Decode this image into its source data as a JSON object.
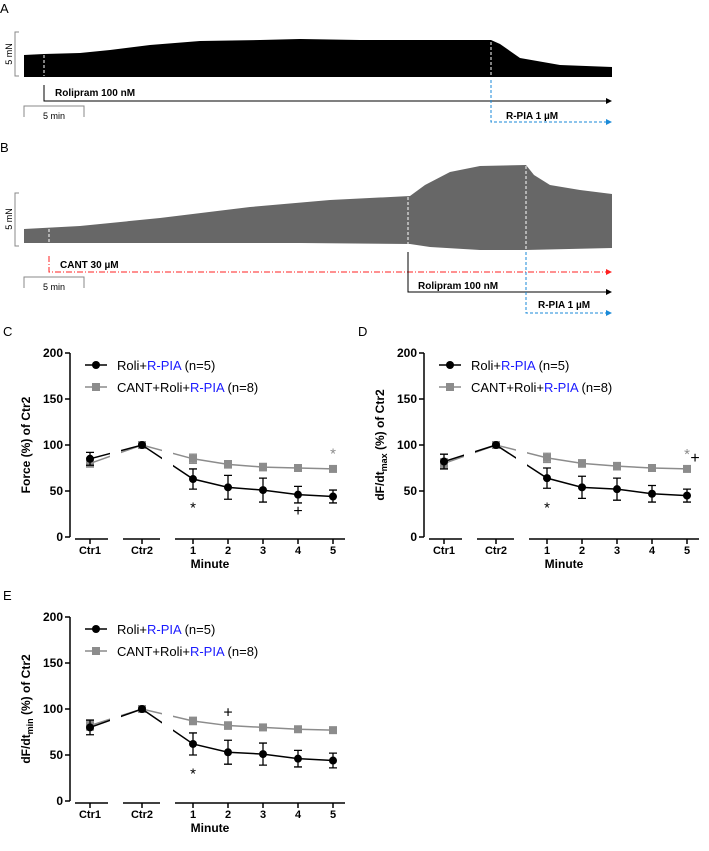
{
  "panels": {
    "a": "A",
    "b": "B",
    "c": "C",
    "d": "D",
    "e": "E"
  },
  "traces": {
    "scale_force": "5 mN",
    "scale_time": "5 min",
    "a": {
      "drug1": "Rolipram 100 nM",
      "drug2": "R-PIA 1 µM"
    },
    "b": {
      "drug0": "CANT 30 µM",
      "drug1": "Rolipram 100 nM",
      "drug2": "R-PIA 1 µM"
    }
  },
  "colors": {
    "roli": "#000000",
    "cant": "#8c8c8c",
    "rpia": "#1a1aff",
    "cant_line": "#ff2020",
    "rpia_line": "#1a8ad8",
    "trace_a": "#000000",
    "trace_b": "#676767"
  },
  "chart_data": [
    {
      "type": "line",
      "id": "c",
      "ylabel": "Force (%) of Ctr2",
      "ylabel_sub": "",
      "ylabel_end": "",
      "xlabel": "Minute",
      "ylim": [
        0,
        200
      ],
      "yticks": [
        0,
        50,
        100,
        150,
        200
      ],
      "categories": [
        "Ctr1",
        "Ctr2",
        "1",
        "2",
        "3",
        "4",
        "5"
      ],
      "legend": [
        {
          "pre": "Roli+",
          "blue": "R-PIA",
          "post": " (n=5)"
        },
        {
          "pre": "CANT+Roli+",
          "blue": "R-PIA",
          "post": " (n=8)"
        }
      ],
      "series": [
        {
          "name": "Roli+R-PIA (n=5)",
          "values": [
            85,
            100,
            63,
            54,
            51,
            46,
            44
          ],
          "errors": [
            7,
            0,
            11,
            13,
            13,
            9,
            7
          ]
        },
        {
          "name": "CANT+Roli+R-PIA (n=8)",
          "values": [
            80,
            100,
            85,
            79,
            76,
            75,
            74
          ],
          "errors": [
            4,
            0,
            5,
            4,
            4,
            3,
            3
          ]
        }
      ],
      "annotations": [
        {
          "text": "*",
          "cat": 2,
          "y": 32,
          "series": 0
        },
        {
          "text": "+",
          "cat": 5,
          "y": 28,
          "series": 0
        },
        {
          "text": "*",
          "cat": 6,
          "y": 91,
          "series": 1
        }
      ]
    },
    {
      "type": "line",
      "id": "d",
      "ylabel": "dF/dt",
      "ylabel_sub": "max",
      "ylabel_end": " (%) of Ctr2",
      "xlabel": "Minute",
      "ylim": [
        0,
        200
      ],
      "yticks": [
        0,
        50,
        100,
        150,
        200
      ],
      "categories": [
        "Ctr1",
        "Ctr2",
        "1",
        "2",
        "3",
        "4",
        "5"
      ],
      "legend": [
        {
          "pre": "Roli+",
          "blue": "R-PIA",
          "post": " (n=5)"
        },
        {
          "pre": "CANT+Roli+",
          "blue": "R-PIA",
          "post": " (n=8)"
        }
      ],
      "series": [
        {
          "name": "Roli+R-PIA (n=5)",
          "values": [
            82,
            100,
            64,
            54,
            52,
            47,
            45
          ],
          "errors": [
            8,
            0,
            11,
            12,
            12,
            9,
            7
          ]
        },
        {
          "name": "CANT+Roli+R-PIA (n=8)",
          "values": [
            80,
            100,
            86,
            80,
            77,
            75,
            74
          ],
          "errors": [
            5,
            0,
            5,
            4,
            4,
            3,
            3
          ]
        }
      ],
      "annotations": [
        {
          "text": "*",
          "cat": 2,
          "y": 32,
          "series": 0
        },
        {
          "text": "*",
          "cat": 6,
          "y": 90,
          "series": 1
        },
        {
          "text": "+",
          "cat": 6,
          "y": 86,
          "series": 0,
          "dx": 8
        }
      ]
    },
    {
      "type": "line",
      "id": "e",
      "ylabel": "dF/dt",
      "ylabel_sub": "min",
      "ylabel_end": " (%) of Ctr2",
      "xlabel": "Minute",
      "ylim": [
        0,
        200
      ],
      "yticks": [
        0,
        50,
        100,
        150,
        200
      ],
      "categories": [
        "Ctr1",
        "Ctr2",
        "1",
        "2",
        "3",
        "4",
        "5"
      ],
      "legend": [
        {
          "pre": "Roli+",
          "blue": "R-PIA",
          "post": " (n=5)"
        },
        {
          "pre": "CANT+Roli+",
          "blue": "R-PIA",
          "post": " (n=8)"
        }
      ],
      "series": [
        {
          "name": "Roli+R-PIA (n=5)",
          "values": [
            80,
            100,
            62,
            53,
            51,
            46,
            44
          ],
          "errors": [
            8,
            0,
            12,
            13,
            12,
            9,
            8
          ]
        },
        {
          "name": "CANT+Roli+R-PIA (n=8)",
          "values": [
            82,
            100,
            87,
            82,
            80,
            78,
            77
          ],
          "errors": [
            5,
            0,
            4,
            4,
            3,
            3,
            3
          ]
        }
      ],
      "annotations": [
        {
          "text": "*",
          "cat": 2,
          "y": 30,
          "series": 0
        },
        {
          "text": "+",
          "cat": 3,
          "y": 96,
          "series": 0
        }
      ]
    }
  ]
}
